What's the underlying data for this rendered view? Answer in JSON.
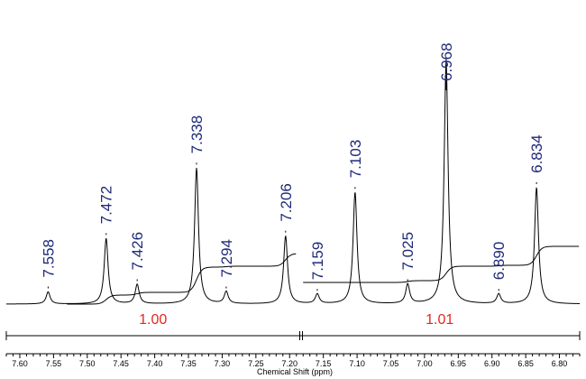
{
  "chart_data": {
    "type": "line",
    "xlabel": "Chemical Shift (ppm)",
    "xlim": [
      7.62,
      6.77
    ],
    "x_reversed": true,
    "x_ticks": [
      7.6,
      7.55,
      7.5,
      7.45,
      7.4,
      7.35,
      7.3,
      7.25,
      7.2,
      7.15,
      7.1,
      7.05,
      7.0,
      6.95,
      6.9,
      6.85,
      6.8
    ],
    "peaks": [
      {
        "ppm": 7.558,
        "label": "7.558",
        "height": 0.05
      },
      {
        "ppm": 7.472,
        "label": "7.472",
        "height": 0.27
      },
      {
        "ppm": 7.426,
        "label": "7.426",
        "height": 0.08
      },
      {
        "ppm": 7.338,
        "label": "7.338",
        "height": 0.56
      },
      {
        "ppm": 7.294,
        "label": "7.294",
        "height": 0.05
      },
      {
        "ppm": 7.206,
        "label": "7.206",
        "height": 0.28
      },
      {
        "ppm": 7.159,
        "label": "7.159",
        "height": 0.04
      },
      {
        "ppm": 7.103,
        "label": "7.103",
        "height": 0.46
      },
      {
        "ppm": 7.025,
        "label": "7.025",
        "height": 0.08
      },
      {
        "ppm": 6.968,
        "label": "6.968",
        "height": 1.0
      },
      {
        "ppm": 6.89,
        "label": "6.890",
        "height": 0.04
      },
      {
        "ppm": 6.834,
        "label": "6.834",
        "height": 0.48
      }
    ],
    "integrals": [
      {
        "from": 7.62,
        "to": 7.185,
        "value": "1.00",
        "color": "#e8261f"
      },
      {
        "from": 7.185,
        "to": 6.77,
        "value": "1.01",
        "color": "#e8261f"
      }
    ],
    "colors": {
      "spectrum": "#000000",
      "peak_label": "#1f2a78",
      "integral_value": "#e8261f"
    }
  }
}
